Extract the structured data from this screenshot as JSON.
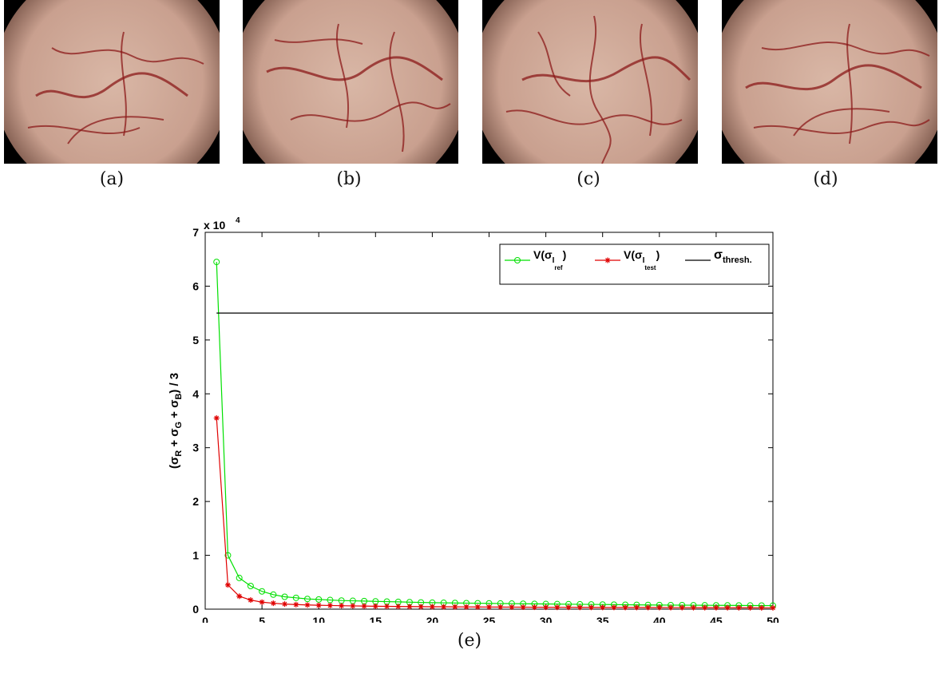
{
  "panels": [
    {
      "caption": "(a)"
    },
    {
      "caption": "(b)"
    },
    {
      "caption": "(c)"
    },
    {
      "caption": "(d)"
    }
  ],
  "chart_caption": "(e)",
  "colors": {
    "ref": "#00e000",
    "test": "#e00000",
    "thresh": "#000000",
    "tissue": "#c9a08f",
    "vessel": "#8b1a1a"
  },
  "chart_data": {
    "type": "line",
    "ylabel_parts": [
      "(σ",
      "R",
      " + σ",
      "G",
      " + σ",
      "B",
      ") / 3"
    ],
    "y_exponent_label": "x 10",
    "y_exponent_power": "4",
    "xlim": [
      0,
      50
    ],
    "ylim": [
      0,
      7
    ],
    "xticks": [
      0,
      5,
      10,
      15,
      20,
      25,
      30,
      35,
      40,
      45,
      50
    ],
    "yticks": [
      0,
      1,
      2,
      3,
      4,
      5,
      6,
      7
    ],
    "legend_position": "top-right",
    "series": [
      {
        "key": "ref",
        "legend": {
          "main": "V(σ",
          "sub1": "I",
          "sub2": "ref",
          "close": ")"
        },
        "marker": "circle",
        "x": [
          1,
          2,
          3,
          4,
          5,
          6,
          7,
          8,
          9,
          10,
          11,
          12,
          13,
          14,
          15,
          16,
          17,
          18,
          19,
          20,
          21,
          22,
          23,
          24,
          25,
          26,
          27,
          28,
          29,
          30,
          31,
          32,
          33,
          34,
          35,
          36,
          37,
          38,
          39,
          40,
          41,
          42,
          43,
          44,
          45,
          46,
          47,
          48,
          49,
          50
        ],
        "values": [
          6.45,
          1.0,
          0.58,
          0.43,
          0.33,
          0.27,
          0.23,
          0.21,
          0.19,
          0.18,
          0.17,
          0.16,
          0.155,
          0.15,
          0.145,
          0.14,
          0.135,
          0.13,
          0.125,
          0.12,
          0.118,
          0.115,
          0.112,
          0.11,
          0.108,
          0.105,
          0.103,
          0.1,
          0.098,
          0.096,
          0.094,
          0.092,
          0.09,
          0.088,
          0.086,
          0.084,
          0.082,
          0.08,
          0.078,
          0.076,
          0.075,
          0.074,
          0.073,
          0.072,
          0.071,
          0.07,
          0.069,
          0.068,
          0.067,
          0.066
        ]
      },
      {
        "key": "test",
        "legend": {
          "main": "V(σ",
          "sub1": "I",
          "sub2": "test",
          "close": ")"
        },
        "marker": "star",
        "x": [
          1,
          2,
          3,
          4,
          5,
          6,
          7,
          8,
          9,
          10,
          11,
          12,
          13,
          14,
          15,
          16,
          17,
          18,
          19,
          20,
          21,
          22,
          23,
          24,
          25,
          26,
          27,
          28,
          29,
          30,
          31,
          32,
          33,
          34,
          35,
          36,
          37,
          38,
          39,
          40,
          41,
          42,
          43,
          44,
          45,
          46,
          47,
          48,
          49,
          50
        ],
        "values": [
          3.55,
          0.45,
          0.24,
          0.17,
          0.13,
          0.11,
          0.095,
          0.085,
          0.078,
          0.072,
          0.068,
          0.064,
          0.06,
          0.057,
          0.054,
          0.052,
          0.05,
          0.048,
          0.046,
          0.045,
          0.044,
          0.043,
          0.042,
          0.041,
          0.04,
          0.039,
          0.038,
          0.037,
          0.036,
          0.035,
          0.034,
          0.034,
          0.033,
          0.033,
          0.032,
          0.032,
          0.031,
          0.031,
          0.03,
          0.03,
          0.029,
          0.029,
          0.028,
          0.028,
          0.027,
          0.027,
          0.026,
          0.026,
          0.025,
          0.025
        ]
      },
      {
        "key": "thresh",
        "legend": {
          "main": "σ",
          "sub": "thresh."
        },
        "x": [
          1,
          50
        ],
        "values": [
          5.5,
          5.5
        ]
      }
    ]
  }
}
